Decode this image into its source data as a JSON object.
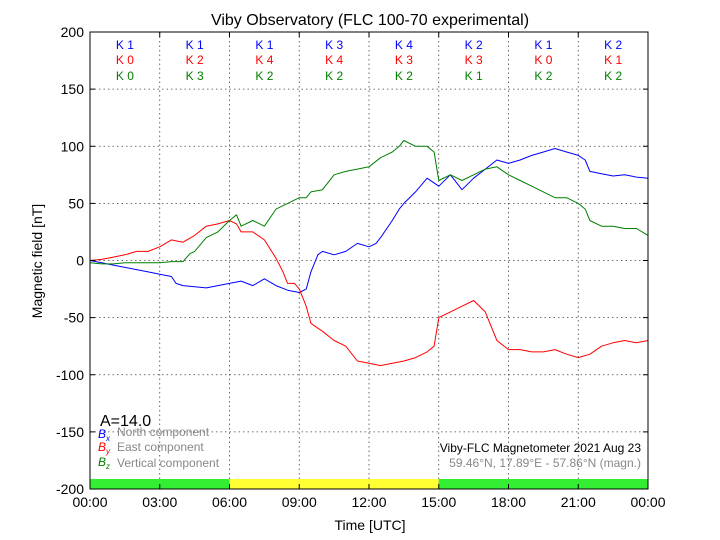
{
  "chart_data": {
    "type": "line",
    "title": "Viby Observatory (FLC 100-70 experimental)",
    "xlabel": "Time [UTC]",
    "ylabel": "Magnetic field [nT]",
    "xlim": [
      0,
      24
    ],
    "ylim": [
      -200,
      200
    ],
    "x_ticks": [
      "00:00",
      "03:00",
      "06:00",
      "09:00",
      "12:00",
      "15:00",
      "18:00",
      "21:00",
      "00:00"
    ],
    "y_ticks": [
      200,
      150,
      100,
      50,
      0,
      -50,
      -100,
      -150,
      -200
    ],
    "grid": true,
    "annotation_a": "A=14.0",
    "info_line1": "Viby-FLC Magnetometer 2021 Aug 23",
    "info_line2": "59.46°N, 17.89°E - 57.86°N (magn.)",
    "legend_position": "bottom-left",
    "colors": {
      "north": "#0000ff",
      "east": "#ff0000",
      "vertical": "#008000",
      "green_bar": "#33ee33",
      "yellow_bar": "#ffff33"
    },
    "activity_bar": [
      {
        "from": 0,
        "to": 6,
        "level": "green"
      },
      {
        "from": 6,
        "to": 15,
        "level": "yellow"
      },
      {
        "from": 15,
        "to": 24,
        "level": "green"
      }
    ],
    "k_index": {
      "north": [
        "K 1",
        "K 1",
        "K 1",
        "K 3",
        "K 4",
        "K 2",
        "K 1",
        "K 2"
      ],
      "east": [
        "K 0",
        "K 2",
        "K 4",
        "K 4",
        "K 3",
        "K 3",
        "K 0",
        "K 1"
      ],
      "vertical": [
        "K 0",
        "K 3",
        "K 2",
        "K 2",
        "K 2",
        "K 1",
        "K 2",
        "K 2"
      ]
    },
    "series": [
      {
        "key": "north",
        "name": "North component",
        "symbol_base": "B",
        "symbol_sub": "x",
        "x": [
          0,
          0.5,
          1,
          1.5,
          2,
          2.5,
          3,
          3.5,
          3.7,
          4,
          4.5,
          5,
          5.5,
          6,
          6.5,
          7,
          7.5,
          8,
          8.5,
          9,
          9.3,
          9.5,
          9.8,
          10,
          10.5,
          11,
          11.5,
          12,
          12.3,
          12.5,
          13,
          13.3,
          13.5,
          14,
          14.5,
          15,
          15.5,
          16,
          16.5,
          17,
          17.5,
          18,
          18.5,
          19,
          19.5,
          20,
          20.5,
          21,
          21.3,
          21.5,
          22,
          22.5,
          23,
          23.5,
          24
        ],
        "values": [
          0,
          -2,
          -4,
          -6,
          -8,
          -10,
          -12,
          -14,
          -20,
          -22,
          -23,
          -24,
          -22,
          -20,
          -18,
          -22,
          -16,
          -22,
          -26,
          -28,
          -25,
          -10,
          5,
          8,
          5,
          8,
          15,
          12,
          15,
          20,
          35,
          45,
          50,
          60,
          72,
          65,
          75,
          62,
          72,
          80,
          88,
          85,
          88,
          92,
          95,
          98,
          95,
          92,
          88,
          78,
          76,
          74,
          75,
          73,
          72
        ]
      },
      {
        "key": "east",
        "name": "East component",
        "symbol_base": "B",
        "symbol_sub": "y",
        "x": [
          0,
          0.5,
          1,
          1.5,
          2,
          2.5,
          3,
          3.5,
          4,
          4.5,
          5,
          5.5,
          6,
          6.3,
          6.5,
          7,
          7.5,
          8,
          8.3,
          8.5,
          8.8,
          9,
          9.3,
          9.5,
          10,
          10.5,
          11,
          11.5,
          12,
          12.5,
          13,
          13.5,
          14,
          14.5,
          14.8,
          15,
          15.5,
          16,
          16.5,
          17,
          17.5,
          18,
          18.5,
          19,
          19.5,
          20,
          20.5,
          21,
          21.5,
          22,
          22.5,
          23,
          23.5,
          24
        ],
        "values": [
          0,
          1,
          3,
          5,
          8,
          8,
          12,
          18,
          16,
          22,
          30,
          32,
          35,
          32,
          25,
          25,
          18,
          2,
          -10,
          -20,
          -20,
          -25,
          -40,
          -55,
          -62,
          -70,
          -75,
          -88,
          -90,
          -92,
          -90,
          -88,
          -85,
          -80,
          -75,
          -50,
          -45,
          -40,
          -35,
          -45,
          -70,
          -78,
          -78,
          -80,
          -80,
          -78,
          -82,
          -85,
          -82,
          -75,
          -72,
          -70,
          -72,
          -70
        ]
      },
      {
        "key": "vertical",
        "name": "Vertical component",
        "symbol_base": "B",
        "symbol_sub": "z",
        "x": [
          0,
          0.5,
          1,
          1.5,
          2,
          2.5,
          3,
          3.5,
          4,
          4.3,
          4.5,
          5,
          5.5,
          6,
          6.3,
          6.5,
          7,
          7.5,
          8,
          8.5,
          9,
          9.3,
          9.5,
          10,
          10.5,
          11,
          11.5,
          12,
          12.5,
          13,
          13.3,
          13.5,
          14,
          14.5,
          14.8,
          15,
          15.5,
          16,
          16.5,
          17,
          17.5,
          18,
          18.5,
          19,
          19.5,
          20,
          20.5,
          21,
          21.3,
          21.5,
          22,
          22.5,
          23,
          23.5,
          24
        ],
        "values": [
          -2,
          -3,
          -3,
          -2,
          -2,
          -2,
          -2,
          -1,
          -1,
          6,
          8,
          20,
          25,
          35,
          40,
          30,
          35,
          30,
          45,
          50,
          55,
          55,
          60,
          62,
          75,
          78,
          80,
          82,
          90,
          95,
          100,
          105,
          100,
          100,
          95,
          70,
          75,
          70,
          75,
          80,
          82,
          75,
          70,
          65,
          60,
          55,
          55,
          50,
          45,
          35,
          30,
          30,
          28,
          28,
          22
        ]
      }
    ]
  }
}
